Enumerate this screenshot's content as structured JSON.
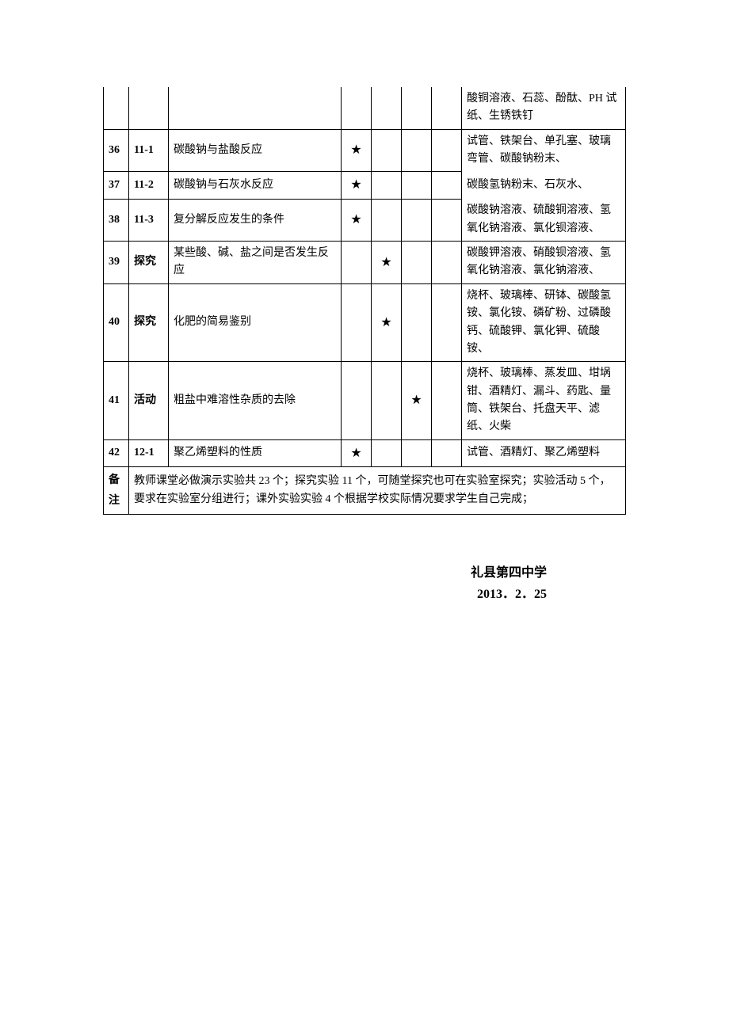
{
  "star": "★",
  "table": {
    "partial_row": {
      "materials": "酸铜溶液、石蕊、酚酞、PH 试纸、生锈铁钉"
    },
    "rows": [
      {
        "idx": "36",
        "code": "11-1",
        "name": "碳酸钠与盐酸反应",
        "c1": true,
        "c2": false,
        "c3": false,
        "c4": false,
        "materials": "试管、铁架台、单孔塞、玻璃弯管、碳酸钠粉末、",
        "mat_merge_down": true
      },
      {
        "idx": "37",
        "code": "11-2",
        "name": "碳酸钠与石灰水反应",
        "c1": true,
        "c2": false,
        "c3": false,
        "c4": false,
        "materials": "碳酸氢钠粉末、石灰水、",
        "mat_continues": true,
        "mat_merge_down": true
      },
      {
        "idx": "38",
        "code": "11-3",
        "name": "复分解反应发生的条件",
        "c1": true,
        "c2": false,
        "c3": false,
        "c4": false,
        "materials": "碳酸钠溶液、硫酸铜溶液、氢氧化钠溶液、氯化钡溶液、",
        "mat_continues": true
      },
      {
        "idx": "39",
        "code": "探究",
        "name": "某些酸、碱、盐之间是否发生反应",
        "c1": false,
        "c2": true,
        "c3": false,
        "c4": false,
        "materials": "碳酸钾溶液、硝酸钡溶液、氢氧化钠溶液、氯化钠溶液、"
      },
      {
        "idx": "40",
        "code": "探究",
        "name": "化肥的简易鉴别",
        "c1": false,
        "c2": true,
        "c3": false,
        "c4": false,
        "materials": "烧杯、玻璃棒、研钵、碳酸氢铵、氯化铵、磷矿粉、过磷酸钙、硫酸钾、氯化钾、硫酸铵、"
      },
      {
        "idx": "41",
        "code": "活动",
        "name": "粗盐中难溶性杂质的去除",
        "c1": false,
        "c2": false,
        "c3": true,
        "c4": false,
        "materials": "烧杯、玻璃棒、蒸发皿、坩埚钳、酒精灯、漏斗、药匙、量筒、铁架台、托盘天平、滤纸、火柴"
      },
      {
        "idx": "42",
        "code": "12-1",
        "name": "聚乙烯塑料的性质",
        "c1": true,
        "c2": false,
        "c3": false,
        "c4": false,
        "materials": "试管、酒精灯、聚乙烯塑料"
      }
    ],
    "remark_label": "备注",
    "remark_text": "教师课堂必做演示实验共 23 个；探究实验 11 个，可随堂探究也可在实验室探究；实验活动 5 个，要求在实验室分组进行；课外实验实验 4 个根据学校实际情况要求学生自己完成；"
  },
  "signature": {
    "school": "礼县第四中学",
    "date": "2013．2．25"
  }
}
